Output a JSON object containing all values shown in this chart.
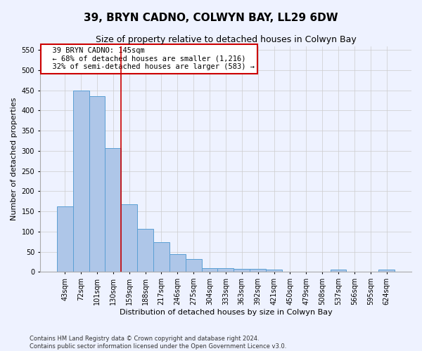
{
  "title": "39, BRYN CADNO, COLWYN BAY, LL29 6DW",
  "subtitle": "Size of property relative to detached houses in Colwyn Bay",
  "xlabel": "Distribution of detached houses by size in Colwyn Bay",
  "ylabel": "Number of detached properties",
  "footer_line1": "Contains HM Land Registry data © Crown copyright and database right 2024.",
  "footer_line2": "Contains public sector information licensed under the Open Government Licence v3.0.",
  "bar_labels": [
    "43sqm",
    "72sqm",
    "101sqm",
    "130sqm",
    "159sqm",
    "188sqm",
    "217sqm",
    "246sqm",
    "275sqm",
    "304sqm",
    "333sqm",
    "363sqm",
    "392sqm",
    "421sqm",
    "450sqm",
    "479sqm",
    "508sqm",
    "537sqm",
    "566sqm",
    "595sqm",
    "624sqm"
  ],
  "bar_values": [
    163,
    450,
    435,
    307,
    167,
    106,
    74,
    44,
    32,
    10,
    10,
    8,
    8,
    5,
    0,
    0,
    0,
    5,
    0,
    0,
    5
  ],
  "bar_color": "#aec6e8",
  "bar_edge_color": "#5a9fd4",
  "ylim": [
    0,
    560
  ],
  "yticks": [
    0,
    50,
    100,
    150,
    200,
    250,
    300,
    350,
    400,
    450,
    500,
    550
  ],
  "vline_x": 3.5,
  "vline_color": "#cc0000",
  "annotation_text": "  39 BRYN CADNO: 145sqm\n  ← 68% of detached houses are smaller (1,216)\n  32% of semi-detached houses are larger (583) →",
  "annotation_box_color": "#ffffff",
  "annotation_box_edge_color": "#cc0000",
  "bg_color": "#eef2ff",
  "grid_color": "#cccccc",
  "title_fontsize": 11,
  "subtitle_fontsize": 9,
  "annotation_fontsize": 7.5,
  "axis_label_fontsize": 8,
  "tick_fontsize": 7,
  "footer_fontsize": 6
}
